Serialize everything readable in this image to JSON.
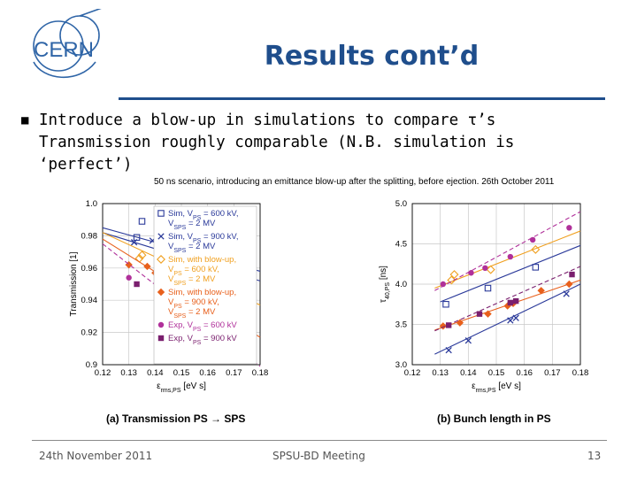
{
  "logo": {
    "text": "CERN"
  },
  "slide": {
    "title": "Results cont’d",
    "bullet_line1": "Introduce a blow-up in simulations to compare τ’s",
    "bullet_line2": "Transmission roughly comparable (N.B. simulation is",
    "bullet_line3": "‘perfect’)"
  },
  "figure": {
    "title": "50 ns scenario, introducing an emittance blow-up after the splitting, before ejection. 26th October 2011",
    "caption_a": "(a) Transmission PS → SPS",
    "caption_b": "(b) Bunch length in PS"
  },
  "footer": {
    "date": "24th November 2011",
    "meeting": "SPSU-BD Meeting",
    "page": "13"
  },
  "colors": {
    "title": "#1f4e8c",
    "sim": "#2b3a9a",
    "sim_blowup": "#f0a020",
    "exp": "#7a1f6e",
    "orange": "#e8601c"
  },
  "chart_data": [
    {
      "type": "scatter",
      "ylabel": "Transmission [1]",
      "xlabel": "ε",
      "xlabel_sub": "rms,PS",
      "xlabel_unit": " [eV s]",
      "xlim": [
        0.12,
        0.18
      ],
      "ylim": [
        0.9,
        1.0
      ],
      "xticks": [
        "0.12",
        "0.13",
        "0.14",
        "0.15",
        "0.16",
        "0.17",
        "0.18"
      ],
      "yticks": [
        "0.9",
        "0.92",
        "0.94",
        "0.96",
        "0.98",
        "1.0"
      ],
      "legend": [
        {
          "symbol": "square-open",
          "color": "#2b3a9a",
          "l1": "Sim, V",
          "s1": "PS",
          "r1": " = 600 kV,",
          "l2": "V",
          "s2": "SPS",
          "r2": " = 2 MV"
        },
        {
          "symbol": "x",
          "color": "#2b3a9a",
          "l1": "Sim, V",
          "s1": "PS",
          "r1": " = 900 kV,",
          "l2": "V",
          "s2": "SPS",
          "r2": " = 2 MV"
        },
        {
          "symbol": "diamond-open",
          "color": "#f0a020",
          "l1": "Sim, with blow-up,",
          "s1": "",
          "r1": "",
          "l2": "V",
          "s2": "PS",
          "r2": " = 600 kV,",
          "l3": "V",
          "s3": "SPS",
          "r3": " = 2 MV"
        },
        {
          "symbol": "diamond",
          "color": "#e8601c",
          "l1": "Sim, with blow-up,",
          "s1": "",
          "r1": "",
          "l2": "V",
          "s2": "PS",
          "r2": " = 900 kV,",
          "l3": "V",
          "s3": "SPS",
          "r3": " = 2 MV"
        },
        {
          "symbol": "dot",
          "color": "#b0309a",
          "l1": "Exp, V",
          "s1": "PS",
          "r1": " = 600 kV"
        },
        {
          "symbol": "square",
          "color": "#7a1f6e",
          "l1": "Exp, V",
          "s1": "PS",
          "r1": " = 900 kV"
        }
      ],
      "series": [
        {
          "symbol": "square-open",
          "color": "#2b3a9a",
          "line": "solid",
          "fit": [
            [
              0.12,
              0.985
            ],
            [
              0.18,
              0.958
            ]
          ],
          "points": [
            [
              0.133,
              0.979
            ],
            [
              0.135,
              0.989
            ],
            [
              0.147,
              0.976
            ],
            [
              0.162,
              0.977
            ]
          ]
        },
        {
          "symbol": "x",
          "color": "#2b3a9a",
          "line": "solid",
          "fit": [
            [
              0.12,
              0.982
            ],
            [
              0.18,
              0.952
            ]
          ],
          "points": [
            [
              0.132,
              0.976
            ],
            [
              0.139,
              0.977
            ],
            [
              0.145,
              0.976
            ],
            [
              0.158,
              0.969
            ],
            [
              0.163,
              0.967
            ],
            [
              0.177,
              0.956
            ]
          ]
        },
        {
          "symbol": "diamond-open",
          "color": "#f0a020",
          "line": "solid",
          "fit": [
            [
              0.12,
              0.982
            ],
            [
              0.18,
              0.937
            ]
          ],
          "points": [
            [
              0.134,
              0.966
            ],
            [
              0.135,
              0.968
            ],
            [
              0.15,
              0.96
            ],
            [
              0.161,
              0.949
            ]
          ]
        },
        {
          "symbol": "diamond",
          "color": "#e8601c",
          "line": "solid",
          "fit": [
            [
              0.12,
              0.978
            ],
            [
              0.18,
              0.917
            ]
          ],
          "points": [
            [
              0.13,
              0.962
            ],
            [
              0.137,
              0.961
            ],
            [
              0.14,
              0.957
            ],
            [
              0.144,
              0.956
            ],
            [
              0.157,
              0.947
            ],
            [
              0.167,
              0.932
            ],
            [
              0.176,
              0.926
            ]
          ]
        },
        {
          "symbol": "dot",
          "color": "#b0309a",
          "line": "dashed",
          "fit": [
            [
              0.12,
              0.975
            ],
            [
              0.18,
              0.899
            ]
          ],
          "points": [
            [
              0.13,
              0.954
            ],
            [
              0.141,
              0.942
            ],
            [
              0.149,
              0.934
            ],
            [
              0.156,
              0.925
            ],
            [
              0.164,
              0.92
            ],
            [
              0.176,
              0.911
            ]
          ]
        },
        {
          "symbol": "square",
          "color": "#7a1f6e",
          "line": "none",
          "fit": [],
          "points": [
            [
              0.133,
              0.95
            ],
            [
              0.144,
              0.938
            ],
            [
              0.158,
              0.928
            ],
            [
              0.161,
              0.925
            ],
            [
              0.177,
              0.909
            ]
          ]
        }
      ]
    },
    {
      "type": "scatter",
      "ylabel": "τ",
      "ylabel_sub": "40,PS",
      "ylabel_unit": " [ns]",
      "xlabel": "ε",
      "xlabel_sub": "rms,PS",
      "xlabel_unit": " [eV s]",
      "xlim": [
        0.12,
        0.18
      ],
      "ylim": [
        3.0,
        5.0
      ],
      "xticks": [
        "0.12",
        "0.13",
        "0.14",
        "0.15",
        "0.16",
        "0.17",
        "0.18"
      ],
      "yticks": [
        "3.0",
        "3.5",
        "4.0",
        "4.5",
        "5.0"
      ],
      "series": [
        {
          "symbol": "square-open",
          "color": "#2b3a9a",
          "line": "solid",
          "fit": [
            [
              0.13,
              3.78
            ],
            [
              0.18,
              4.48
            ]
          ],
          "points": [
            [
              0.132,
              3.75
            ],
            [
              0.147,
              3.95
            ],
            [
              0.164,
              4.21
            ]
          ]
        },
        {
          "symbol": "x",
          "color": "#2b3a9a",
          "line": "solid",
          "fit": [
            [
              0.128,
              3.13
            ],
            [
              0.18,
              4.0
            ]
          ],
          "points": [
            [
              0.133,
              3.18
            ],
            [
              0.14,
              3.3
            ],
            [
              0.155,
              3.55
            ],
            [
              0.157,
              3.58
            ],
            [
              0.175,
              3.88
            ]
          ]
        },
        {
          "symbol": "diamond-open",
          "color": "#f0a020",
          "line": "solid",
          "fit": [
            [
              0.128,
              3.95
            ],
            [
              0.18,
              4.66
            ]
          ],
          "points": [
            [
              0.134,
              4.05
            ],
            [
              0.135,
              4.12
            ],
            [
              0.148,
              4.18
            ],
            [
              0.164,
              4.43
            ]
          ]
        },
        {
          "symbol": "diamond",
          "color": "#e8601c",
          "line": "solid",
          "fit": [
            [
              0.128,
              3.43
            ],
            [
              0.18,
              4.05
            ]
          ],
          "points": [
            [
              0.131,
              3.48
            ],
            [
              0.137,
              3.52
            ],
            [
              0.147,
              3.63
            ],
            [
              0.154,
              3.73
            ],
            [
              0.156,
              3.76
            ],
            [
              0.166,
              3.92
            ],
            [
              0.176,
              4.0
            ]
          ]
        },
        {
          "symbol": "dot",
          "color": "#b0309a",
          "line": "dashed",
          "fit": [
            [
              0.128,
              3.92
            ],
            [
              0.18,
              4.9
            ]
          ],
          "points": [
            [
              0.131,
              4.0
            ],
            [
              0.141,
              4.14
            ],
            [
              0.146,
              4.2
            ],
            [
              0.155,
              4.34
            ],
            [
              0.163,
              4.55
            ],
            [
              0.176,
              4.7
            ]
          ]
        },
        {
          "symbol": "square",
          "color": "#7a1f6e",
          "line": "dashed",
          "fit": [
            [
              0.128,
              3.42
            ],
            [
              0.18,
              4.22
            ]
          ],
          "points": [
            [
              0.133,
              3.49
            ],
            [
              0.144,
              3.63
            ],
            [
              0.155,
              3.77
            ],
            [
              0.157,
              3.79
            ],
            [
              0.177,
              4.12
            ]
          ]
        }
      ]
    }
  ]
}
